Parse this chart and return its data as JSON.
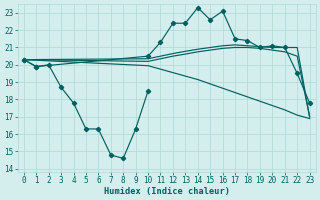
{
  "xlabel": "Humidex (Indice chaleur)",
  "color": "#006060",
  "bg_color": "#d4eeee",
  "grid_color": "#aed8d8",
  "ylim": [
    13.8,
    23.5
  ],
  "xlim": [
    -0.5,
    23.5
  ],
  "yticks": [
    14,
    15,
    16,
    17,
    18,
    19,
    20,
    21,
    22,
    23
  ],
  "xticks": [
    0,
    1,
    2,
    3,
    4,
    5,
    6,
    7,
    8,
    9,
    10,
    11,
    12,
    13,
    14,
    15,
    16,
    17,
    18,
    19,
    20,
    21,
    22,
    23
  ],
  "line_zigzag_x": [
    0,
    1,
    2,
    3,
    4,
    5,
    6,
    7,
    8,
    9,
    10
  ],
  "line_zigzag_y": [
    20.3,
    19.9,
    20.0,
    18.7,
    17.8,
    16.3,
    16.3,
    14.8,
    14.6,
    16.3,
    18.5
  ],
  "line_peak_x": [
    0,
    1,
    10,
    11,
    12,
    13,
    14,
    15,
    16,
    17,
    18,
    19,
    20,
    21,
    22,
    23
  ],
  "line_peak_y": [
    20.3,
    19.9,
    20.5,
    21.3,
    22.4,
    22.4,
    23.3,
    22.6,
    23.1,
    21.5,
    21.4,
    21.0,
    21.1,
    21.0,
    19.5,
    17.8
  ],
  "line_upper_x": [
    0,
    10,
    11,
    12,
    13,
    14,
    15,
    16,
    17,
    18,
    19,
    20,
    21,
    22,
    23
  ],
  "line_upper_y": [
    20.3,
    20.35,
    20.5,
    20.65,
    20.78,
    20.9,
    21.0,
    21.1,
    21.15,
    21.1,
    21.05,
    21.0,
    21.0,
    21.0,
    17.0
  ],
  "line_mid_x": [
    0,
    10,
    11,
    12,
    13,
    14,
    15,
    16,
    17,
    18,
    19,
    20,
    21,
    22,
    23
  ],
  "line_mid_y": [
    20.3,
    20.2,
    20.35,
    20.5,
    20.62,
    20.75,
    20.85,
    20.95,
    21.0,
    21.0,
    20.95,
    20.85,
    20.75,
    20.5,
    17.0
  ],
  "line_lower_x": [
    0,
    10,
    11,
    12,
    13,
    14,
    15,
    16,
    17,
    18,
    19,
    20,
    21,
    22,
    23
  ],
  "line_lower_y": [
    20.3,
    19.95,
    19.75,
    19.55,
    19.35,
    19.15,
    18.9,
    18.65,
    18.4,
    18.15,
    17.9,
    17.65,
    17.4,
    17.1,
    16.9
  ]
}
